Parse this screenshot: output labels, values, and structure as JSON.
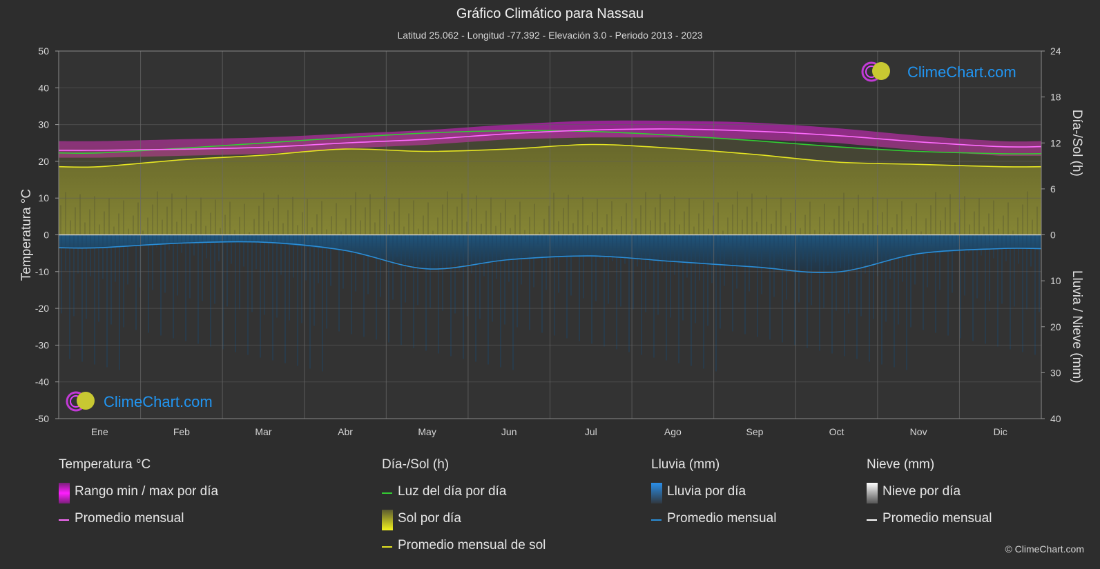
{
  "header": {
    "title": "Gráfico Climático para Nassau",
    "subtitle": "Latitud 25.062 - Longitud -77.392 - Elevación 3.0 - Periodo 2013 - 2023"
  },
  "colors": {
    "background": "#2d2d2d",
    "temp_range": "#d11ed1",
    "temp_avg": "#ff6cff",
    "daylight": "#33cc33",
    "sunshine_fill": "#8c8c2c",
    "sunshine_avg": "#e6e622",
    "rain_fill": "#1a5a8a",
    "rain_avg": "#2a8ed8",
    "snow": "#ffffff",
    "brand": "#2196f3"
  },
  "chart_data": {
    "type": "line",
    "categories": [
      "Ene",
      "Feb",
      "Mar",
      "Abr",
      "May",
      "Jun",
      "Jul",
      "Ago",
      "Sep",
      "Oct",
      "Nov",
      "Dic"
    ],
    "y_left": {
      "label": "Temperatura °C",
      "range": [
        -50,
        50
      ],
      "ticks": [
        50,
        40,
        30,
        20,
        10,
        0,
        -10,
        -20,
        -30,
        -40,
        -50
      ]
    },
    "y_right_top": {
      "label": "Día-/Sol (h)",
      "range": [
        0,
        24
      ],
      "ticks": [
        24,
        18,
        12,
        6,
        0
      ]
    },
    "y_right_bottom": {
      "label": "Lluvia / Nieve (mm)",
      "range": [
        0,
        40
      ],
      "ticks": [
        0,
        10,
        20,
        30,
        40
      ]
    },
    "grid": true,
    "series": [
      {
        "name": "Rango min / max por día",
        "kind": "band",
        "axis": "temp",
        "min": [
          21.0,
          21.5,
          22.0,
          23.5,
          24.5,
          26.0,
          26.5,
          26.5,
          26.0,
          25.0,
          23.0,
          21.5
        ],
        "max": [
          25.5,
          26.0,
          26.5,
          27.5,
          28.5,
          30.0,
          31.0,
          31.0,
          30.5,
          29.0,
          27.0,
          25.5
        ]
      },
      {
        "name": "Promedio mensual",
        "kind": "temp_avg",
        "axis": "temp",
        "values": [
          23.0,
          23.3,
          23.8,
          25.0,
          26.0,
          27.5,
          28.5,
          28.8,
          28.2,
          27.0,
          25.3,
          24.0
        ]
      },
      {
        "name": "Luz del día por día",
        "kind": "daylight",
        "axis": "hours",
        "values": [
          10.7,
          11.3,
          12.0,
          12.7,
          13.3,
          13.6,
          13.5,
          13.0,
          12.3,
          11.5,
          10.9,
          10.6
        ]
      },
      {
        "name": "Promedio mensual de sol",
        "kind": "sun_avg",
        "axis": "hours",
        "values": [
          8.9,
          9.8,
          10.4,
          11.2,
          10.9,
          11.2,
          11.8,
          11.3,
          10.5,
          9.5,
          9.2,
          8.9
        ]
      },
      {
        "name": "Promedio mensual",
        "kind": "rain_avg",
        "axis": "rain",
        "values": [
          2.8,
          1.8,
          1.6,
          3.4,
          7.4,
          5.4,
          4.6,
          5.8,
          7.0,
          8.1,
          4.1,
          3.0
        ]
      },
      {
        "name": "Promedio mensual",
        "kind": "snow_avg",
        "axis": "rain",
        "values": [
          0,
          0,
          0,
          0,
          0,
          0,
          0,
          0,
          0,
          0,
          0,
          0
        ]
      }
    ]
  },
  "legend": {
    "groups": [
      {
        "heading": "Temperatura °C",
        "items": [
          {
            "label": "Rango min / max por día",
            "swatch": "box-magenta"
          },
          {
            "label": "Promedio mensual",
            "swatch": "line-pink"
          }
        ]
      },
      {
        "heading": "Día-/Sol (h)",
        "items": [
          {
            "label": "Luz del día por día",
            "swatch": "line-green"
          },
          {
            "label": "Sol por día",
            "swatch": "box-yellow"
          },
          {
            "label": "Promedio mensual de sol",
            "swatch": "line-yellow"
          }
        ]
      },
      {
        "heading": "Lluvia (mm)",
        "items": [
          {
            "label": "Lluvia por día",
            "swatch": "box-blue"
          },
          {
            "label": "Promedio mensual",
            "swatch": "line-blue"
          }
        ]
      },
      {
        "heading": "Nieve (mm)",
        "items": [
          {
            "label": "Nieve por día",
            "swatch": "box-white"
          },
          {
            "label": "Promedio mensual",
            "swatch": "line-white"
          }
        ]
      }
    ]
  },
  "watermark": {
    "text": "ClimeChart.com",
    "icon": "climechart-logo-icon"
  },
  "copyright": "© ClimeChart.com"
}
